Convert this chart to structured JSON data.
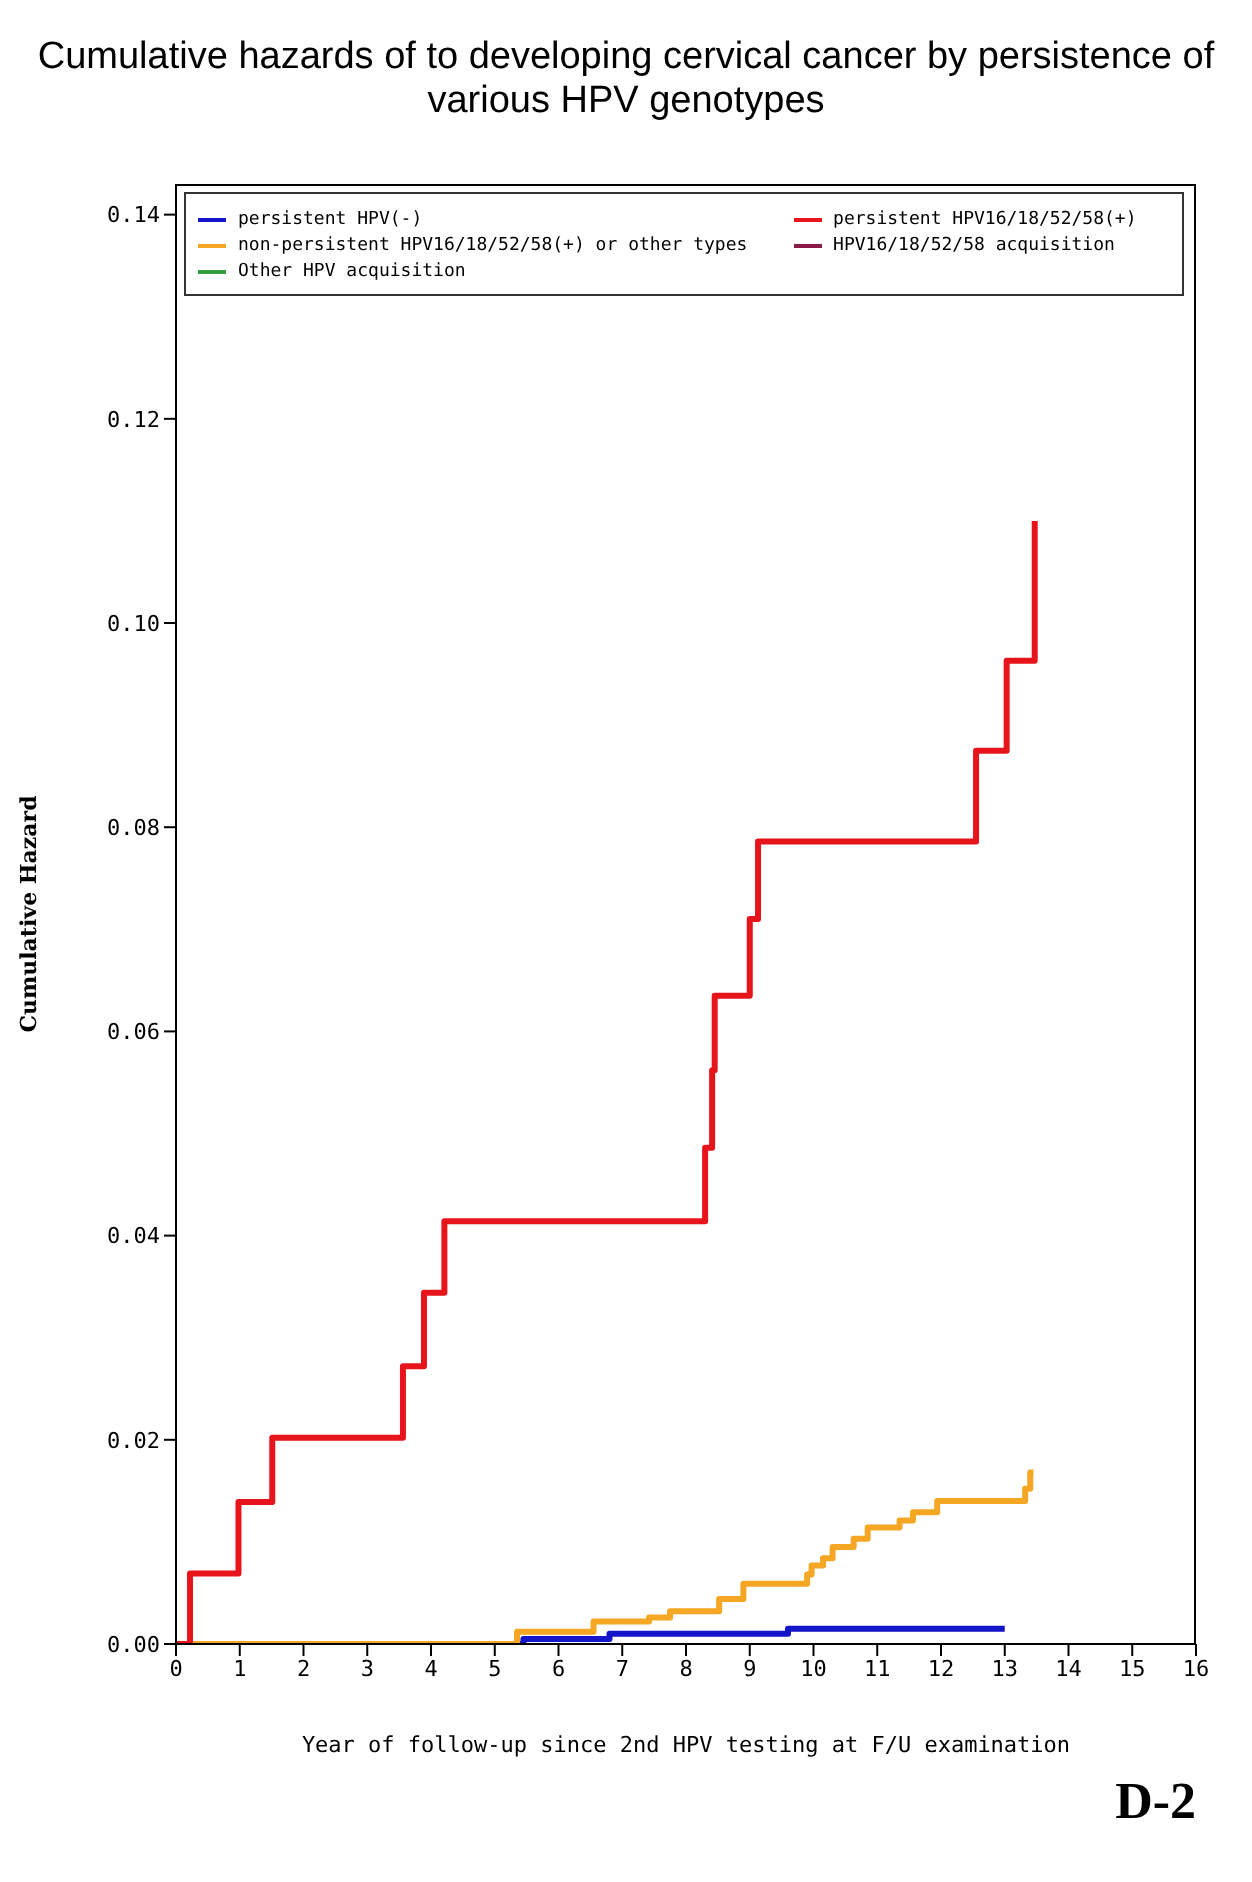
{
  "chart_data": {
    "type": "step",
    "title": "Cumulative hazards of to developing cervical cancer by persistence of various HPV genotypes",
    "xlabel": "Year of follow-up since 2nd HPV testing at F/U examination",
    "ylabel": "Cumulative Hazard",
    "annotations": [
      "D-2"
    ],
    "xlim": [
      0,
      16
    ],
    "xticks": [
      0,
      1,
      2,
      3,
      4,
      5,
      6,
      7,
      8,
      9,
      10,
      11,
      12,
      13,
      14,
      15,
      16
    ],
    "ylim": [
      0,
      0.143
    ],
    "yticks": [
      {
        "value": 0,
        "label": "0.00"
      },
      {
        "value": 0.02,
        "label": "0.02"
      },
      {
        "value": 0.04,
        "label": "0.04"
      },
      {
        "value": 0.06,
        "label": "0.06"
      },
      {
        "value": 0.08,
        "label": "0.08"
      },
      {
        "value": 0.1,
        "label": "0.10"
      },
      {
        "value": 0.12,
        "label": "0.12"
      },
      {
        "value": 0.14,
        "label": "0.14"
      }
    ],
    "grid": false,
    "legend": "top",
    "marker": "none",
    "line_style": "solid",
    "series": [
      {
        "name": "persistent HPV(-)",
        "color": "#1414c8",
        "x": [
          0,
          5.45,
          6.8,
          9.6,
          13.0
        ],
        "values": [
          0,
          0.0005,
          0.001,
          0.0015,
          0.0015
        ]
      },
      {
        "name": "non-persistent HPV16/18/52/58(+) or other types",
        "color": "#f5a623",
        "x": [
          0,
          5.35,
          6.55,
          7.42,
          7.75,
          8.52,
          8.9,
          9.9,
          9.97,
          10.15,
          10.3,
          10.63,
          10.85,
          11.35,
          11.56,
          11.94,
          13.32,
          13.4,
          13.45
        ],
        "values": [
          0,
          0.0012,
          0.0022,
          0.0026,
          0.0032,
          0.0044,
          0.0059,
          0.0068,
          0.0077,
          0.0084,
          0.0095,
          0.0103,
          0.0114,
          0.0121,
          0.0129,
          0.014,
          0.0152,
          0.0168,
          0.0168
        ]
      },
      {
        "name": "Other HPV acquisition",
        "color": "#2e9e3e"
      },
      {
        "name": "persistent HPV16/18/52/58(+)",
        "color": "#e8141c",
        "x": [
          0,
          0.22,
          0.98,
          1.51,
          3.56,
          3.89,
          4.21,
          8.3,
          8.41,
          8.45,
          9.0,
          9.13,
          12.55,
          13.03,
          13.47
        ],
        "values": [
          0,
          0.0069,
          0.0139,
          0.0202,
          0.0272,
          0.0344,
          0.0414,
          0.0486,
          0.0562,
          0.0635,
          0.071,
          0.0786,
          0.0875,
          0.0963,
          0.11
        ]
      },
      {
        "name": "HPV16/18/52/58 acquisition",
        "color": "#8b1a4a"
      }
    ]
  }
}
